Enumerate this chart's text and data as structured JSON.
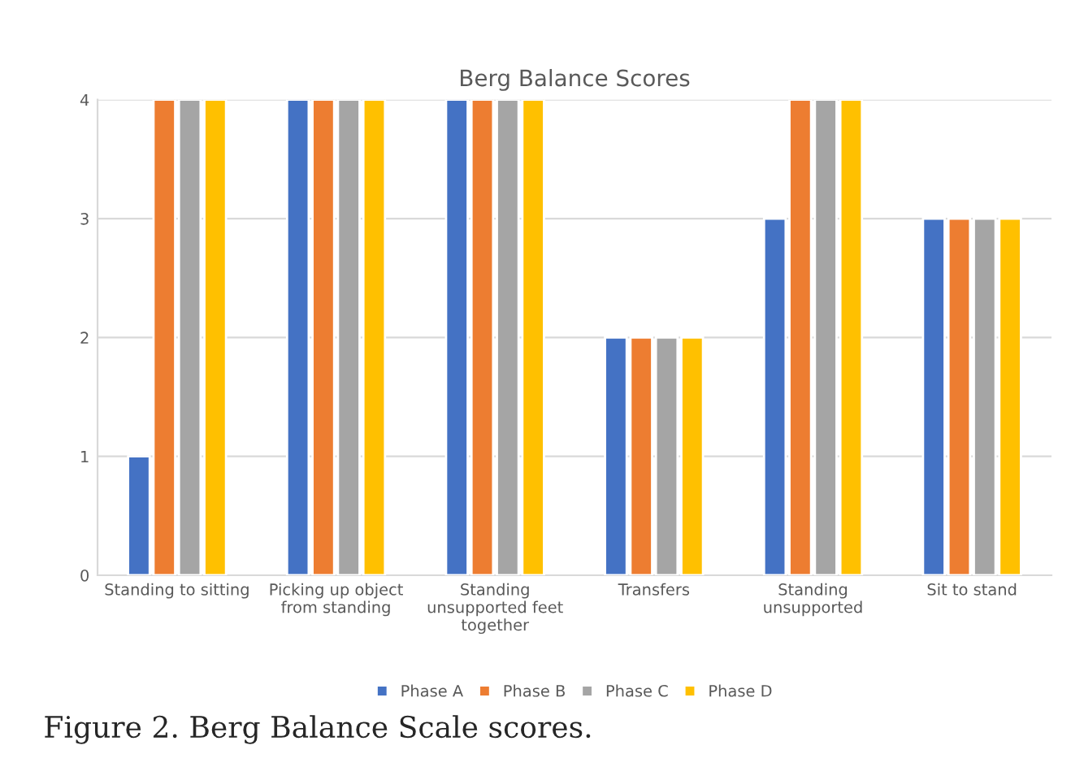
{
  "chart_data": {
    "type": "bar",
    "title": "Berg Balance Scores",
    "categories": [
      "Standing to sitting",
      "Picking up object\nfrom standing",
      "Standing\nunsupported feet\ntogether",
      "Transfers",
      "Standing\nunsupported",
      "Sit to stand"
    ],
    "series": [
      {
        "name": "Phase A",
        "color": "#4472c4",
        "values": [
          1,
          4,
          4,
          2,
          3,
          3
        ]
      },
      {
        "name": "Phase B",
        "color": "#ed7d31",
        "values": [
          4,
          4,
          4,
          2,
          4,
          3
        ]
      },
      {
        "name": "Phase C",
        "color": "#a5a5a5",
        "values": [
          4,
          4,
          4,
          2,
          4,
          3
        ]
      },
      {
        "name": "Phase D",
        "color": "#ffc000",
        "values": [
          4,
          4,
          4,
          2,
          4,
          3
        ]
      }
    ],
    "ylim": [
      0,
      4
    ],
    "yticks": [
      0,
      1,
      2,
      3,
      4
    ],
    "grid": "y",
    "legend": "bottom",
    "annotations": [
      "Figure 2. Berg Balance Scale scores."
    ]
  }
}
